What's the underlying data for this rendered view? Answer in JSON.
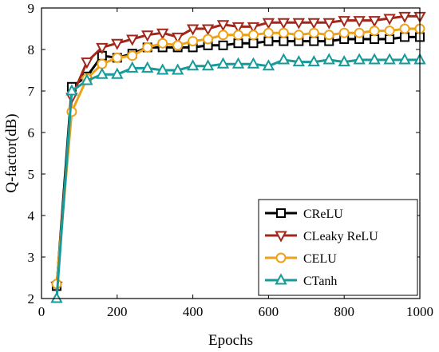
{
  "chart_data": {
    "type": "line",
    "xlabel": "Epochs",
    "ylabel": "Q-factor(dB)",
    "xlim": [
      0,
      1000
    ],
    "ylim": [
      2,
      9
    ],
    "xticks": [
      "0",
      "200",
      "400",
      "600",
      "800",
      "1000"
    ],
    "yticks": [
      "2",
      "3",
      "4",
      "5",
      "6",
      "7",
      "8",
      "9"
    ],
    "grid": false,
    "legend_position": "bottom-right",
    "x": [
      40,
      80,
      120,
      160,
      200,
      240,
      280,
      320,
      360,
      400,
      440,
      480,
      520,
      560,
      600,
      640,
      680,
      720,
      760,
      800,
      840,
      880,
      920,
      960,
      1000
    ],
    "series": [
      {
        "name": "CReLU",
        "color": "#000000",
        "marker": "square",
        "values": [
          2.3,
          7.1,
          7.35,
          7.85,
          7.8,
          7.9,
          8.05,
          8.05,
          8.05,
          8.05,
          8.1,
          8.1,
          8.15,
          8.15,
          8.2,
          8.2,
          8.2,
          8.2,
          8.2,
          8.25,
          8.25,
          8.25,
          8.25,
          8.3,
          8.3
        ]
      },
      {
        "name": "CLeaky ReLU",
        "color": "#a1271b",
        "marker": "triangle-down",
        "values": [
          2.3,
          6.85,
          7.7,
          8.05,
          8.15,
          8.25,
          8.35,
          8.4,
          8.3,
          8.5,
          8.5,
          8.6,
          8.55,
          8.55,
          8.65,
          8.65,
          8.65,
          8.65,
          8.65,
          8.7,
          8.7,
          8.7,
          8.75,
          8.8,
          8.8
        ]
      },
      {
        "name": "CELU",
        "color": "#eca118",
        "marker": "circle",
        "values": [
          2.35,
          6.5,
          7.3,
          7.65,
          7.8,
          7.85,
          8.05,
          8.15,
          8.1,
          8.2,
          8.25,
          8.35,
          8.35,
          8.35,
          8.4,
          8.4,
          8.35,
          8.4,
          8.35,
          8.4,
          8.4,
          8.45,
          8.45,
          8.5,
          8.5
        ]
      },
      {
        "name": "CTanh",
        "color": "#169a9a",
        "marker": "triangle-up",
        "values": [
          2.0,
          7.0,
          7.25,
          7.4,
          7.4,
          7.55,
          7.55,
          7.5,
          7.5,
          7.6,
          7.6,
          7.65,
          7.65,
          7.65,
          7.6,
          7.75,
          7.7,
          7.7,
          7.75,
          7.7,
          7.75,
          7.75,
          7.75,
          7.75,
          7.75
        ]
      }
    ]
  }
}
